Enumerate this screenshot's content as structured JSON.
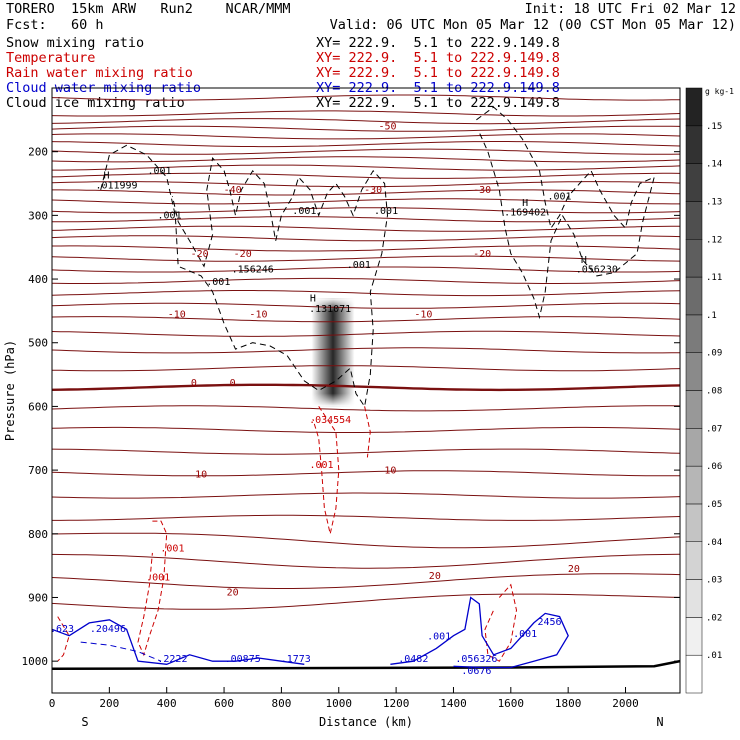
{
  "header": {
    "model": "TORERO  15km ARW   Run2    NCAR/MMM",
    "init": "Init: 18 UTC Fri 02 Mar 12",
    "fcst": "Fcst:   60 h",
    "valid": "Valid: 06 UTC Mon 05 Mar 12 (00 CST Mon 05 Mar 12)"
  },
  "legend": [
    {
      "name": "Snow mixing ratio",
      "xy": "XY= 222.9.  5.1 to 222.9.149.8",
      "color": "#000000"
    },
    {
      "name": "Temperature",
      "xy": "XY= 222.9.  5.1 to 222.9.149.8",
      "color": "#cc0000"
    },
    {
      "name": "Rain water mixing ratio",
      "xy": "XY= 222.9.  5.1 to 222.9.149.8",
      "color": "#cc0000"
    },
    {
      "name": "Cloud water mixing ratio",
      "xy": "XY= 222.9.  5.1 to 222.9.149.8",
      "color": "#0000cc"
    },
    {
      "name": "Cloud ice mixing ratio",
      "xy": "XY= 222.9.  5.1 to 222.9.149.8",
      "color": "#000000"
    }
  ],
  "chart_data": {
    "type": "contour",
    "xlabel": "Distance (km)",
    "ylabel": "Pressure (hPa)",
    "xlim": [
      0,
      2190
    ],
    "ylim": [
      1050,
      100
    ],
    "xticks": [
      "0",
      "200",
      "400",
      "600",
      "800",
      "1000",
      "1200",
      "1400",
      "1600",
      "1800",
      "2000"
    ],
    "yticks": [
      "200",
      "300",
      "400",
      "500",
      "600",
      "700",
      "800",
      "900",
      "1000"
    ],
    "x_endpoints": {
      "left": "S",
      "right": "N"
    },
    "colorbar": {
      "unit": "g kg-1",
      "levels": [
        ".01",
        ".02",
        ".03",
        ".04",
        ".05",
        ".06",
        ".07",
        ".08",
        ".09",
        ".1",
        ".11",
        ".12",
        ".13",
        ".14",
        ".15"
      ]
    },
    "temperature_labels": [
      {
        "text": "-50",
        "x": 1170,
        "p": 165
      },
      {
        "text": "-40",
        "x": 630,
        "p": 265
      },
      {
        "text": "-30",
        "x": 1120,
        "p": 265
      },
      {
        "text": "-30",
        "x": 1500,
        "p": 265
      },
      {
        "text": "-20",
        "x": 515,
        "p": 365
      },
      {
        "text": "-20",
        "x": 665,
        "p": 365
      },
      {
        "text": "-20",
        "x": 1500,
        "p": 365
      },
      {
        "text": "-10",
        "x": 435,
        "p": 460
      },
      {
        "text": "-10",
        "x": 720,
        "p": 460
      },
      {
        "text": "-10",
        "x": 1295,
        "p": 460
      },
      {
        "text": "0",
        "x": 495,
        "p": 568
      },
      {
        "text": "0",
        "x": 630,
        "p": 568
      },
      {
        "text": "10",
        "x": 520,
        "p": 712
      },
      {
        "text": "10",
        "x": 1180,
        "p": 705
      },
      {
        "text": "20",
        "x": 630,
        "p": 897
      },
      {
        "text": "20",
        "x": 1335,
        "p": 871
      },
      {
        "text": "20",
        "x": 1820,
        "p": 860
      }
    ],
    "snow_labels": [
      {
        "text": ".001",
        "x": 375,
        "p": 235
      },
      {
        "text": "H",
        "x": 190,
        "p": 242
      },
      {
        "text": ".011999",
        "x": 225,
        "p": 258
      },
      {
        "text": ".001",
        "x": 410,
        "p": 305
      },
      {
        "text": ".001",
        "x": 880,
        "p": 298
      },
      {
        "text": ".001",
        "x": 1165,
        "p": 298
      },
      {
        "text": ".156246",
        "x": 700,
        "p": 390
      },
      {
        "text": ".001",
        "x": 1070,
        "p": 383
      },
      {
        "text": ".001",
        "x": 580,
        "p": 409
      },
      {
        "text": "H",
        "x": 910,
        "p": 435
      },
      {
        "text": ".131071",
        "x": 970,
        "p": 452
      },
      {
        "text": "H",
        "x": 1650,
        "p": 285
      },
      {
        "text": ".169402",
        "x": 1650,
        "p": 300
      },
      {
        "text": ".001",
        "x": 1770,
        "p": 275
      },
      {
        "text": "H",
        "x": 1855,
        "p": 375
      },
      {
        "text": ".056230",
        "x": 1900,
        "p": 390
      }
    ],
    "rain_labels": [
      {
        "text": ".034554",
        "x": 970,
        "p": 626
      },
      {
        "text": ".001",
        "x": 940,
        "p": 697
      },
      {
        "text": ".001",
        "x": 420,
        "p": 828
      },
      {
        "text": ".001",
        "x": 370,
        "p": 873
      }
    ],
    "cloud_water_labels": [
      {
        "text": ".623",
        "x": 35,
        "p": 954
      },
      {
        "text": ".20496",
        "x": 195,
        "p": 954
      },
      {
        "text": ".2222",
        "x": 420,
        "p": 1001
      },
      {
        "text": ".00875",
        "x": 665,
        "p": 1001
      },
      {
        "text": ".1773",
        "x": 850,
        "p": 1001
      },
      {
        "text": ".0482",
        "x": 1260,
        "p": 1001
      },
      {
        "text": ".001",
        "x": 1350,
        "p": 966
      },
      {
        "text": ".056326",
        "x": 1480,
        "p": 1001
      },
      {
        "text": ".0676",
        "x": 1480,
        "p": 1020
      },
      {
        "text": "2456",
        "x": 1735,
        "p": 943
      },
      {
        "text": ".001",
        "x": 1650,
        "p": 962
      }
    ]
  }
}
